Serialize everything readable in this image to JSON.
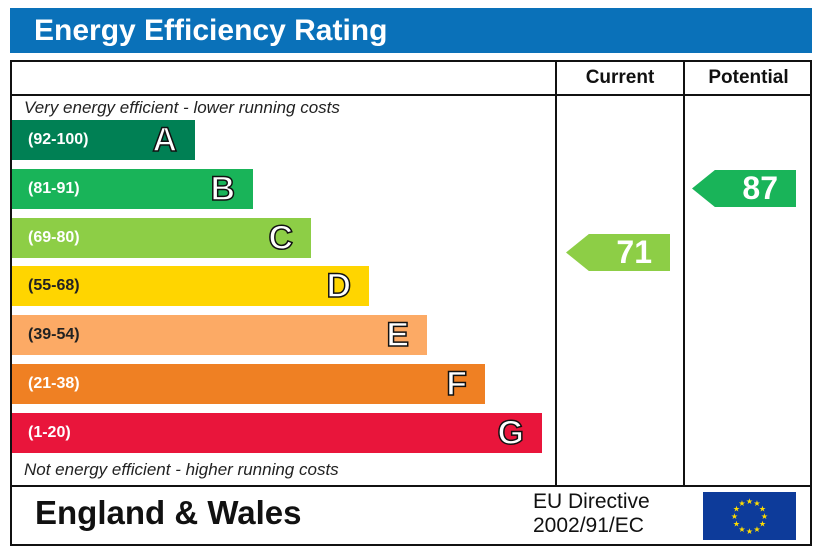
{
  "title": "Energy Efficiency Rating",
  "columns": {
    "current": "Current",
    "potential": "Potential"
  },
  "top_note": "Very energy efficient - lower running costs",
  "bottom_note": "Not energy efficient - higher running costs",
  "chart_data": {
    "type": "bar",
    "bands": [
      {
        "letter": "A",
        "range": "(92-100)",
        "color": "#008054"
      },
      {
        "letter": "B",
        "range": "(81-91)",
        "color": "#19b459"
      },
      {
        "letter": "C",
        "range": "(69-80)",
        "color": "#8dce46"
      },
      {
        "letter": "D",
        "range": "(55-68)",
        "color": "#ffd500"
      },
      {
        "letter": "E",
        "range": "(39-54)",
        "color": "#fcaa65"
      },
      {
        "letter": "F",
        "range": "(21-38)",
        "color": "#ef8023"
      },
      {
        "letter": "G",
        "range": "(1-20)",
        "color": "#e9153b"
      }
    ],
    "current": {
      "value": "71",
      "band": "C",
      "color": "#8dce46"
    },
    "potential": {
      "value": "87",
      "band": "B",
      "color": "#19b459"
    }
  },
  "footer": {
    "region": "England & Wales",
    "directive_line1": "EU Directive",
    "directive_line2": "2002/91/EC",
    "flag": "eu-flag-icon"
  }
}
